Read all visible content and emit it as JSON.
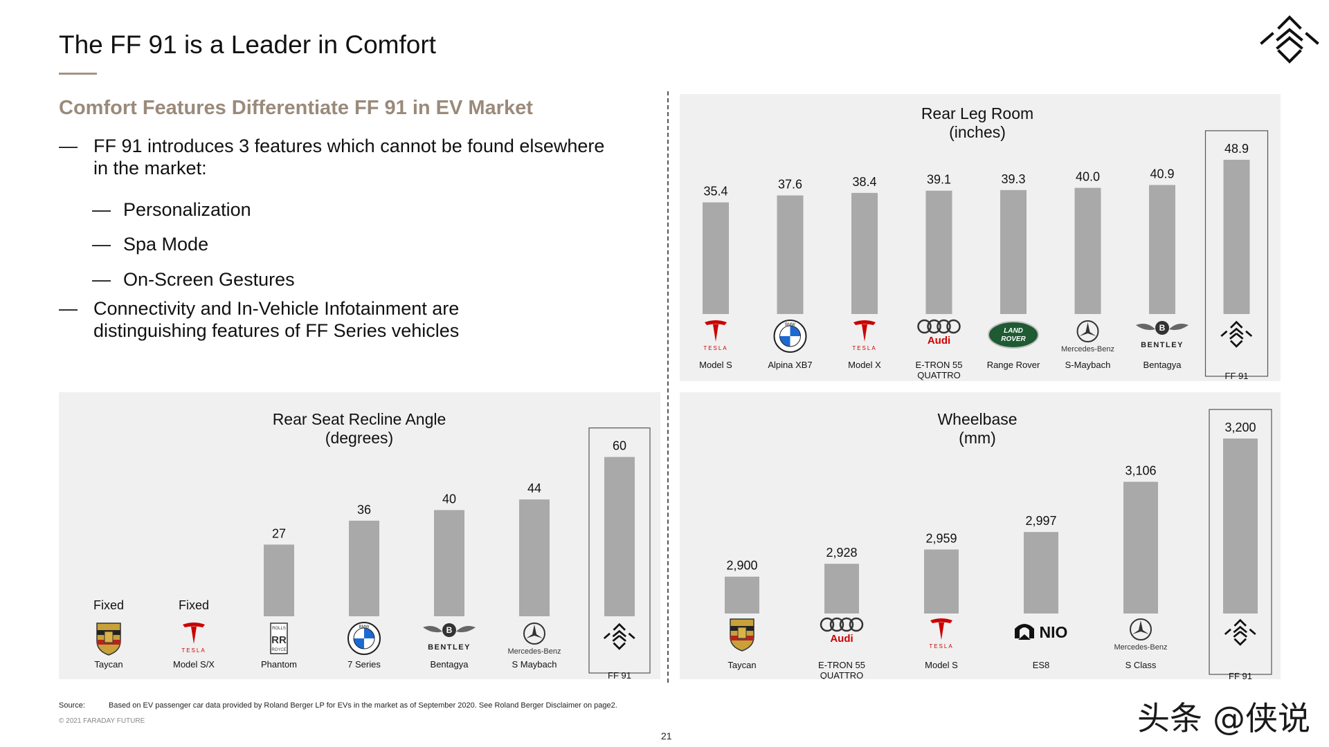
{
  "header": {
    "title": "The FF 91 is a Leader in Comfort",
    "subtitle": "Comfort Features Differentiate FF 91 in EV Market"
  },
  "bullets": [
    {
      "level": 1,
      "lines": [
        "FF 91 introduces 3 features which cannot be found elsewhere",
        "in the market:"
      ]
    },
    {
      "level": 2,
      "lines": [
        "Personalization"
      ]
    },
    {
      "level": 2,
      "lines": [
        "Spa Mode"
      ]
    },
    {
      "level": 2,
      "lines": [
        "On-Screen Gestures"
      ]
    },
    {
      "level": 1,
      "lines": [
        "Connectivity and In-Vehicle Infotainment are",
        "distinguishing features of FF Series vehicles"
      ]
    }
  ],
  "bullet_dash": "—",
  "footer": {
    "source_label": "Source:",
    "source_text": "Based on EV passenger car data provided by Roland Berger LP for EVs in the market as of September 2020. See Roland Berger Disclaimer on page2.",
    "copyright": "© 2021 FARADAY FUTURE",
    "page_number": "21",
    "watermark": "头条 @侠说"
  },
  "colors": {
    "bar": "#a9a9a9",
    "panel_bg": "#f0f0f0",
    "accent": "#9a8a7a",
    "tesla_red": "#cc0000",
    "audi_red": "#cc0000",
    "land_rover_green": "#1e5a32",
    "bmw_blue": "#1c69d4"
  },
  "chart_data": [
    {
      "id": "rear_leg_room",
      "type": "bar",
      "title": "Rear Leg Room",
      "subtitle": "(inches)",
      "categories": [
        "Model S",
        "Alpina XB7",
        "Model X",
        "E-TRON 55 QUATTRO",
        "Range Rover",
        "S-Maybach",
        "Bentagya",
        "FF 91"
      ],
      "category_lines": [
        [
          "Model S"
        ],
        [
          "Alpina XB7"
        ],
        [
          "Model X"
        ],
        [
          "E-TRON 55",
          "QUATTRO"
        ],
        [
          "Range Rover"
        ],
        [
          "S-Maybach"
        ],
        [
          "Bentagya"
        ],
        [
          "FF 91"
        ]
      ],
      "brands": [
        "tesla",
        "bmw",
        "tesla",
        "audi",
        "landrover",
        "mercedes",
        "bentley",
        "ff"
      ],
      "values": [
        35.4,
        37.6,
        38.4,
        39.1,
        39.3,
        40.0,
        40.9,
        48.9
      ],
      "labels": [
        "35.4",
        "37.6",
        "38.4",
        "39.1",
        "39.3",
        "40.0",
        "40.9",
        "48.9"
      ],
      "highlight": "FF 91",
      "ylim": [
        0,
        50
      ]
    },
    {
      "id": "rear_seat_recline_angle",
      "type": "bar",
      "title": "Rear Seat Recline Angle",
      "subtitle": "(degrees)",
      "categories": [
        "Taycan",
        "Model S/X",
        "Phantom",
        "7 Series",
        "Bentagya",
        "S Maybach",
        "FF 91"
      ],
      "category_lines": [
        [
          "Taycan"
        ],
        [
          "Model S/X"
        ],
        [
          "Phantom"
        ],
        [
          "7 Series"
        ],
        [
          "Bentagya"
        ],
        [
          "S Maybach"
        ],
        [
          "FF 91"
        ]
      ],
      "brands": [
        "porsche",
        "tesla",
        "rollsroyce",
        "bmw",
        "bentley",
        "mercedes",
        "ff"
      ],
      "values": [
        null,
        null,
        27,
        36,
        40,
        44,
        60
      ],
      "labels": [
        "Fixed",
        "Fixed",
        "27",
        "36",
        "40",
        "44",
        "60"
      ],
      "highlight": "FF 91",
      "ylim": [
        0,
        62
      ]
    },
    {
      "id": "wheelbase",
      "type": "bar",
      "title": "Wheelbase",
      "subtitle": "(mm)",
      "categories": [
        "Taycan",
        "E-TRON 55 QUATTRO",
        "Model S",
        "ES8",
        "S Class",
        "FF 91"
      ],
      "category_lines": [
        [
          "Taycan"
        ],
        [
          "E-TRON 55",
          "QUATTRO"
        ],
        [
          "Model S"
        ],
        [
          "ES8"
        ],
        [
          "S Class"
        ],
        [
          "FF 91"
        ]
      ],
      "brands": [
        "porsche",
        "audi",
        "tesla",
        "nio",
        "mercedes",
        "ff"
      ],
      "values": [
        2900,
        2928,
        2959,
        2997,
        3106,
        3200
      ],
      "labels": [
        "2,900",
        "2,928",
        "2,959",
        "2,997",
        "3,106",
        "3,200"
      ],
      "highlight": "FF 91",
      "ylim": [
        2820,
        3200
      ]
    }
  ],
  "brand_text": {
    "tesla": "TESLA",
    "audi": "Audi",
    "mercedes": "Mercedes-Benz",
    "bentley": "BENTLEY",
    "landrover_1": "LAND",
    "landrover_2": "ROVER",
    "nio": "NIO",
    "rollsroyce_1": "ROLLS",
    "rollsroyce_2": "ROYCE",
    "bmw": "BMW"
  }
}
